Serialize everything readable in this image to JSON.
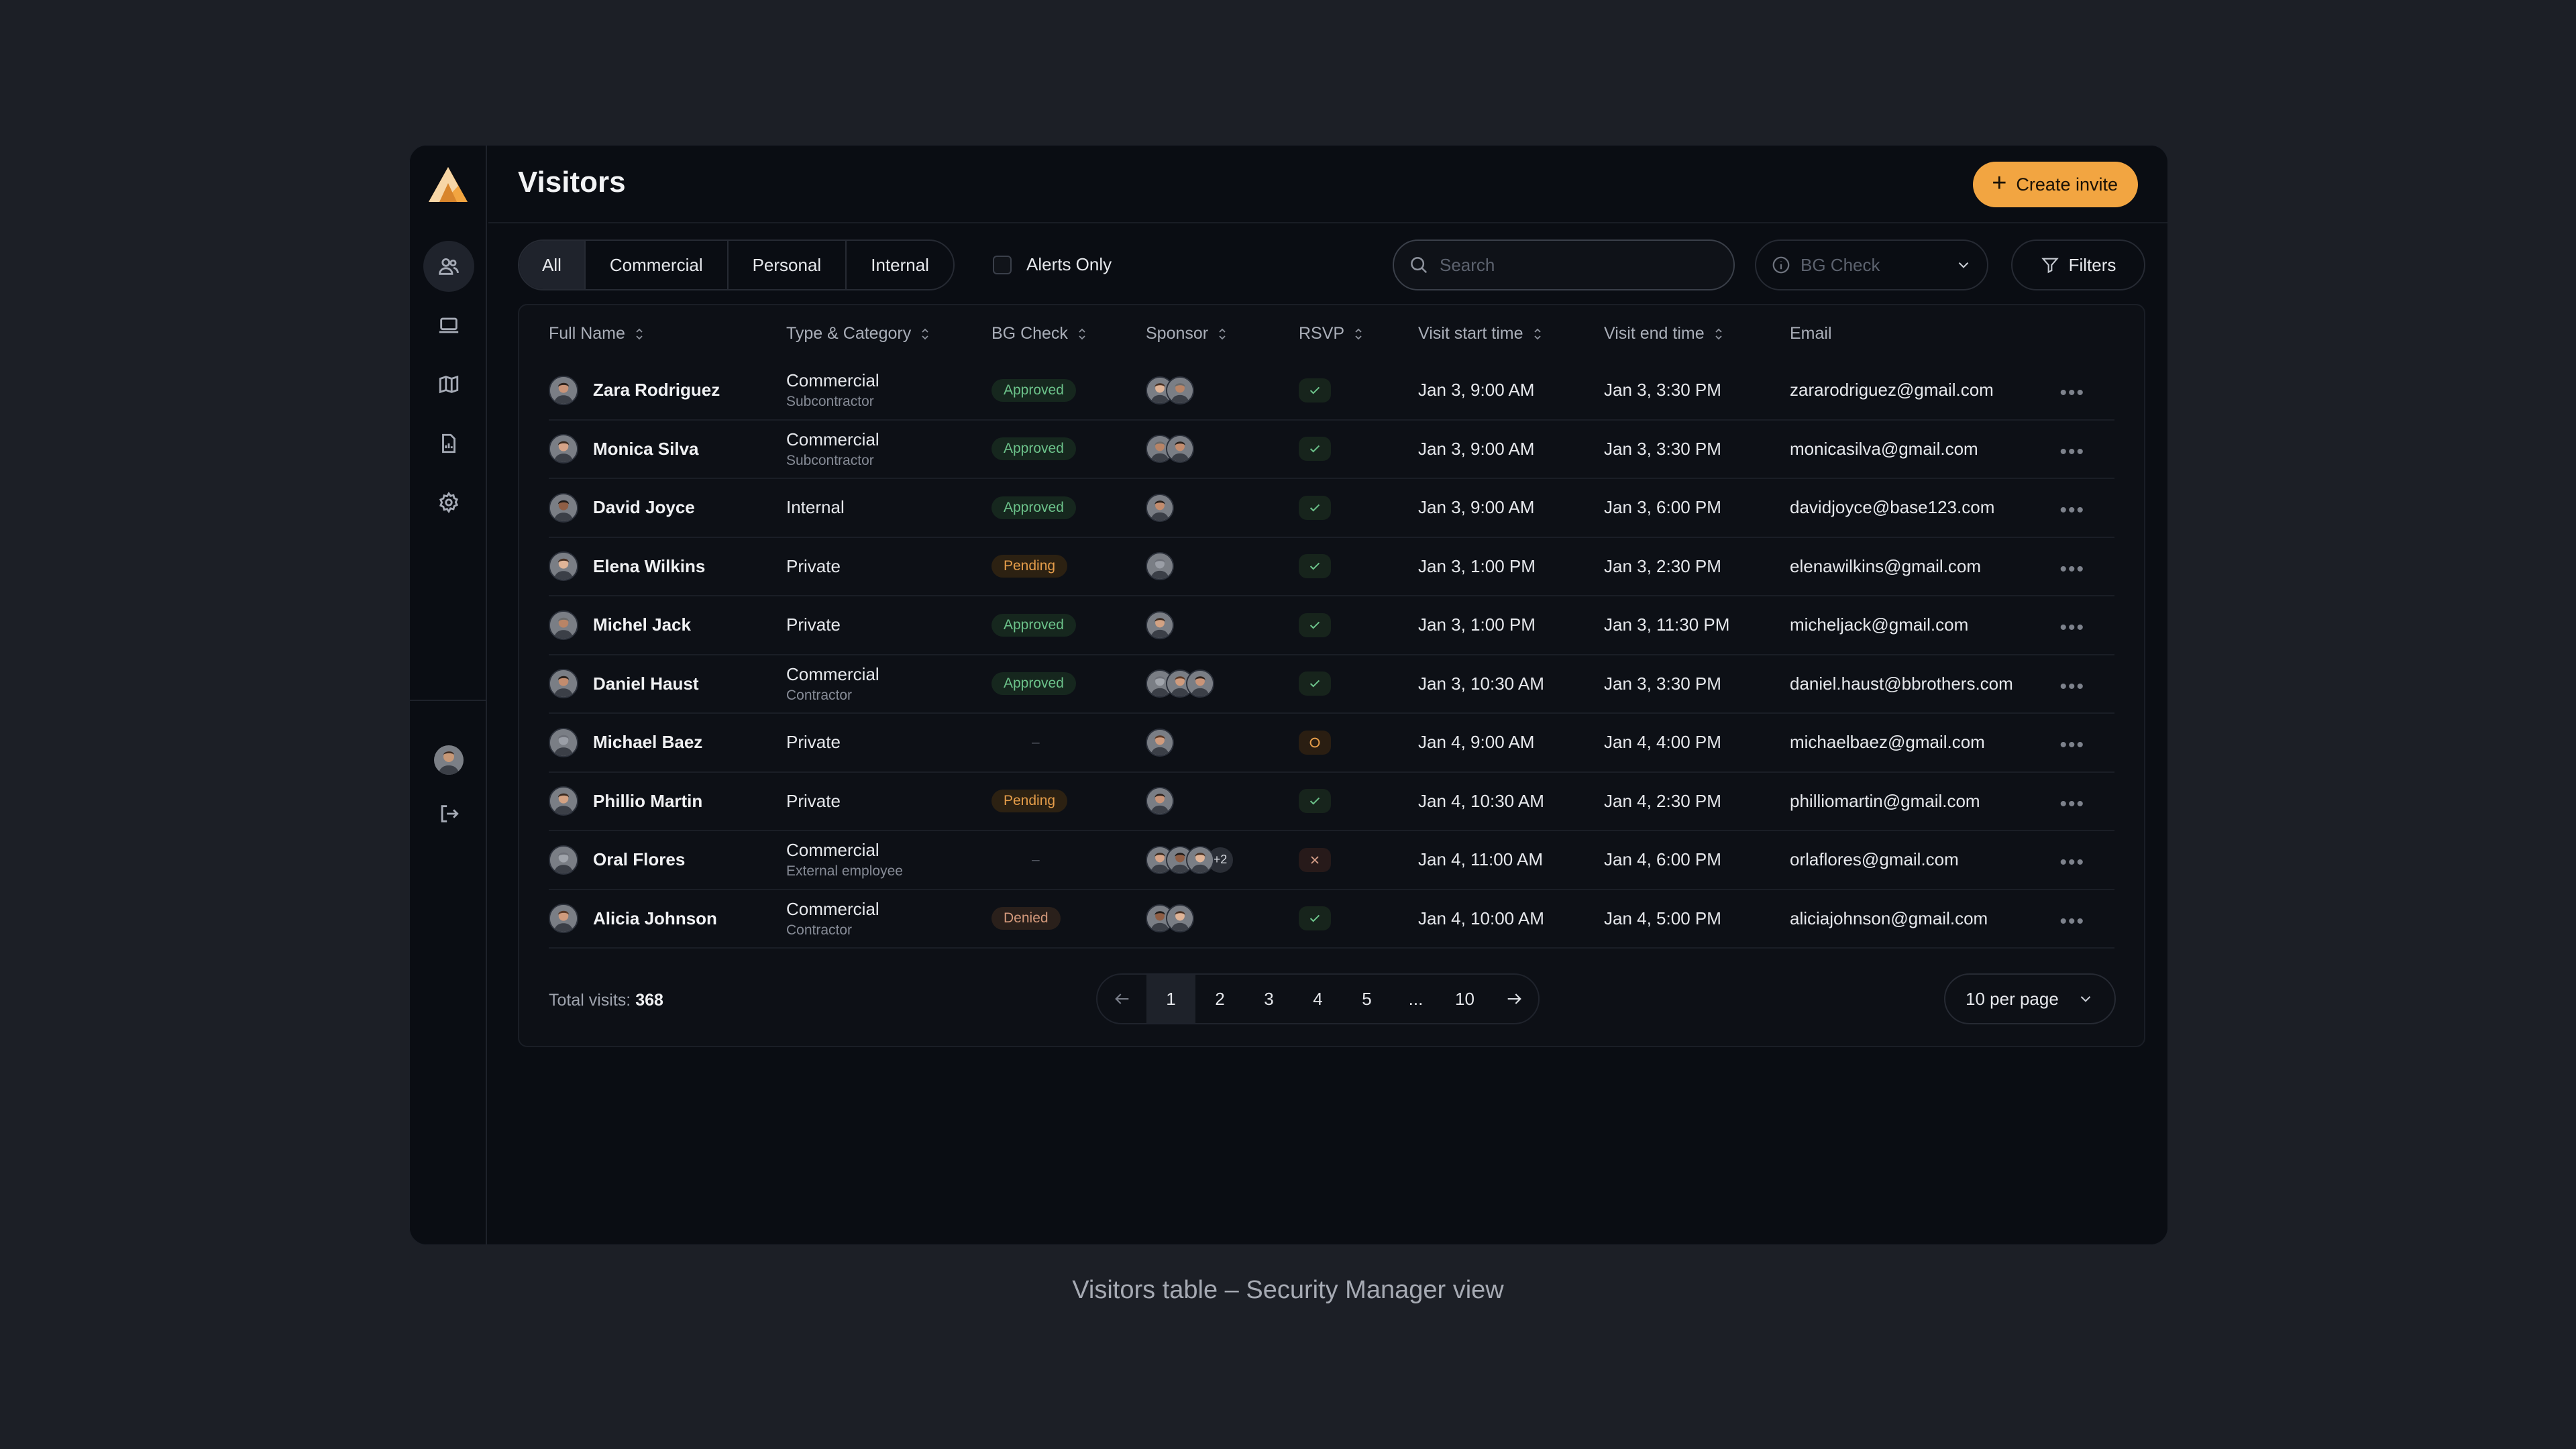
{
  "header": {
    "title": "Visitors",
    "create_label": "Create invite"
  },
  "toolbar": {
    "segments": [
      "All",
      "Commercial",
      "Personal",
      "Internal"
    ],
    "active_segment": "All",
    "alerts_label": "Alerts Only",
    "search_placeholder": "Search",
    "bg_check_placeholder": "BG Check",
    "filters_label": "Filters"
  },
  "table": {
    "columns": [
      "Full Name",
      "Type & Category",
      "BG Check",
      "Sponsor",
      "RSVP",
      "Visit start time",
      "Visit end time",
      "Email"
    ],
    "rows": [
      {
        "name": "Zara Rodriguez",
        "type": "Commercial",
        "category": "Subcontractor",
        "bg": "Approved",
        "bg_status": "approved",
        "sponsors": 2,
        "sponsor_extra": "",
        "rsvp": "yes",
        "start": "Jan 3, 9:00 AM",
        "end": "Jan 3, 3:30 PM",
        "email": "zararodriguez@gmail.com"
      },
      {
        "name": "Monica Silva",
        "type": "Commercial",
        "category": "Subcontractor",
        "bg": "Approved",
        "bg_status": "approved",
        "sponsors": 2,
        "sponsor_extra": "",
        "rsvp": "yes",
        "start": "Jan 3, 9:00 AM",
        "end": "Jan 3, 3:30 PM",
        "email": "monicasilva@gmail.com"
      },
      {
        "name": "David Joyce",
        "type": "Internal",
        "category": "",
        "bg": "Approved",
        "bg_status": "approved",
        "sponsors": 1,
        "sponsor_extra": "",
        "rsvp": "yes",
        "start": "Jan 3, 9:00 AM",
        "end": "Jan 3, 6:00 PM",
        "email": "davidjoyce@base123.com"
      },
      {
        "name": "Elena Wilkins",
        "type": "Private",
        "category": "",
        "bg": "Pending",
        "bg_status": "pending",
        "sponsors": 1,
        "sponsor_extra": "",
        "rsvp": "yes",
        "start": "Jan 3, 1:00 PM",
        "end": "Jan 3, 2:30 PM",
        "email": "elenawilkins@gmail.com"
      },
      {
        "name": "Michel Jack",
        "type": "Private",
        "category": "",
        "bg": "Approved",
        "bg_status": "approved",
        "sponsors": 1,
        "sponsor_extra": "",
        "rsvp": "yes",
        "start": "Jan 3, 1:00 PM",
        "end": "Jan 3, 11:30 PM",
        "email": "micheljack@gmail.com"
      },
      {
        "name": "Daniel Haust",
        "type": "Commercial",
        "category": "Contractor",
        "bg": "Approved",
        "bg_status": "approved",
        "sponsors": 3,
        "sponsor_extra": "",
        "rsvp": "yes",
        "start": "Jan 3, 10:30 AM",
        "end": "Jan 3, 3:30 PM",
        "email": "daniel.haust@bbrothers.com"
      },
      {
        "name": "Michael Baez",
        "type": "Private",
        "category": "",
        "bg": "–",
        "bg_status": "none",
        "sponsors": 1,
        "sponsor_extra": "",
        "rsvp": "maybe",
        "start": "Jan 4, 9:00 AM",
        "end": "Jan 4, 4:00 PM",
        "email": "michaelbaez@gmail.com"
      },
      {
        "name": "Phillio Martin",
        "type": "Private",
        "category": "",
        "bg": "Pending",
        "bg_status": "pending",
        "sponsors": 1,
        "sponsor_extra": "",
        "rsvp": "yes",
        "start": "Jan 4, 10:30 AM",
        "end": "Jan 4, 2:30 PM",
        "email": "philliomartin@gmail.com"
      },
      {
        "name": "Oral Flores",
        "type": "Commercial",
        "category": "External employee",
        "bg": "–",
        "bg_status": "none",
        "sponsors": 3,
        "sponsor_extra": "+2",
        "rsvp": "no",
        "start": "Jan 4, 11:00 AM",
        "end": "Jan 4, 6:00 PM",
        "email": "orlaflores@gmail.com"
      },
      {
        "name": "Alicia Johnson",
        "type": "Commercial",
        "category": "Contractor",
        "bg": "Denied",
        "bg_status": "denied",
        "sponsors": 2,
        "sponsor_extra": "",
        "rsvp": "yes",
        "start": "Jan 4, 10:00 AM",
        "end": "Jan 4, 5:00 PM",
        "email": "aliciajohnson@gmail.com"
      }
    ]
  },
  "footer": {
    "total_label": "Total visits:",
    "total_value": "368",
    "pages": [
      "1",
      "2",
      "3",
      "4",
      "5",
      "...",
      "10"
    ],
    "current_page": "1",
    "per_page": "10 per page"
  },
  "caption": "Visitors table – Security Manager view",
  "colors": {
    "accent": "#f2a541",
    "approved": "#6cc28a",
    "pending": "#e59d4a",
    "denied": "#d59a7c"
  }
}
